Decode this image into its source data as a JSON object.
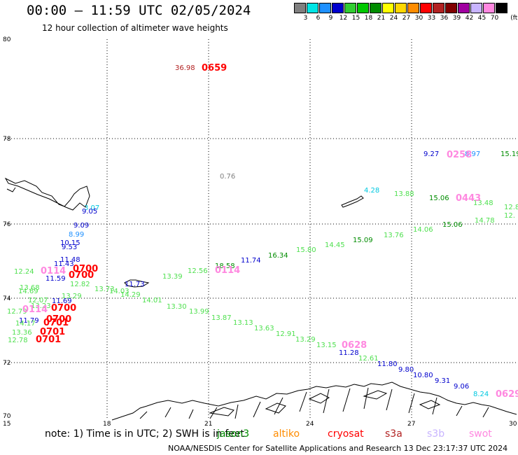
{
  "header": {
    "title": "00:00 – 11:59 UTC 02/05/2024",
    "subtitle": "12 hour collection of altimeter wave heights"
  },
  "legend": {
    "unit": "(ft)",
    "items": [
      {
        "label": "3",
        "color": "#808080"
      },
      {
        "label": "6",
        "color": "#00e5e5"
      },
      {
        "label": "9",
        "color": "#1e90ff"
      },
      {
        "label": "12",
        "color": "#0000cd"
      },
      {
        "label": "15",
        "color": "#32cd32"
      },
      {
        "label": "18",
        "color": "#00c800"
      },
      {
        "label": "21",
        "color": "#008c00"
      },
      {
        "label": "24",
        "color": "#ffff00"
      },
      {
        "label": "27",
        "color": "#ffd700"
      },
      {
        "label": "30",
        "color": "#ff8c00"
      },
      {
        "label": "33",
        "color": "#ff0000"
      },
      {
        "label": "36",
        "color": "#b22222"
      },
      {
        "label": "39",
        "color": "#800000"
      },
      {
        "label": "42",
        "color": "#a000a0"
      },
      {
        "label": "45",
        "color": "#c8b4ff"
      },
      {
        "label": "70",
        "color": "#ff88e0"
      },
      {
        "label": "",
        "color": "#000000"
      }
    ]
  },
  "map": {
    "lat_labels": [
      "80",
      "78",
      "76",
      "74",
      "72",
      "70"
    ],
    "lon_labels": [
      "15",
      "18",
      "21",
      "24",
      "27",
      "30"
    ],
    "grid": true,
    "wave_heights": [
      {
        "text": "36.98",
        "color": "#b22222"
      },
      {
        "text": "0.76",
        "color": "#808080"
      },
      {
        "text": "9.27",
        "color": "#0000cd"
      },
      {
        "text": "8.97",
        "color": "#1e90ff"
      },
      {
        "text": "15.19",
        "color": "#008c00"
      },
      {
        "text": "4.28",
        "color": "#00c8e0"
      },
      {
        "text": "13.88",
        "color": "#50e050"
      },
      {
        "text": "15.06",
        "color": "#008c00"
      },
      {
        "text": "13.48",
        "color": "#50e050"
      },
      {
        "text": "15.06",
        "color": "#008c00"
      },
      {
        "text": "14.78",
        "color": "#50e050"
      },
      {
        "text": "14.06",
        "color": "#50e050"
      },
      {
        "text": "13.76",
        "color": "#50e050"
      },
      {
        "text": "15.09",
        "color": "#008c00"
      },
      {
        "text": "14.45",
        "color": "#50e050"
      },
      {
        "text": "15.80",
        "color": "#50e050"
      },
      {
        "text": "16.34",
        "color": "#008c00"
      },
      {
        "text": "11.74",
        "color": "#0000cd"
      },
      {
        "text": "18.58",
        "color": "#008c00"
      },
      {
        "text": "12.56",
        "color": "#50e050"
      },
      {
        "text": "13.39",
        "color": "#50e050"
      },
      {
        "text": "3.07",
        "color": "#00c8e0"
      },
      {
        "text": "9.05",
        "color": "#0000cd"
      },
      {
        "text": "9.09",
        "color": "#0000cd"
      },
      {
        "text": "8.99",
        "color": "#1e90ff"
      },
      {
        "text": "10.15",
        "color": "#0000cd"
      },
      {
        "text": "9.53",
        "color": "#0000cd"
      },
      {
        "text": "11.48",
        "color": "#0000cd"
      },
      {
        "text": "11.43",
        "color": "#0000cd"
      },
      {
        "text": "12.24",
        "color": "#50e050"
      },
      {
        "text": "11.59",
        "color": "#0000cd"
      },
      {
        "text": "12.82",
        "color": "#50e050"
      },
      {
        "text": "13.68",
        "color": "#50e050"
      },
      {
        "text": "14.69",
        "color": "#50e050"
      },
      {
        "text": "13.29",
        "color": "#50e050"
      },
      {
        "text": "13.73",
        "color": "#50e050"
      },
      {
        "text": "14.03",
        "color": "#50e050"
      },
      {
        "text": "11.73",
        "color": "#0000cd"
      },
      {
        "text": "14.29",
        "color": "#50e050"
      },
      {
        "text": "14.01",
        "color": "#50e050"
      },
      {
        "text": "13.30",
        "color": "#50e050"
      },
      {
        "text": "13.99",
        "color": "#50e050"
      },
      {
        "text": "13.87",
        "color": "#50e050"
      },
      {
        "text": "13.13",
        "color": "#50e050"
      },
      {
        "text": "13.63",
        "color": "#50e050"
      },
      {
        "text": "12.91",
        "color": "#50e050"
      },
      {
        "text": "13.29",
        "color": "#50e050"
      },
      {
        "text": "13.15",
        "color": "#50e050"
      },
      {
        "text": "11.28",
        "color": "#0000cd"
      },
      {
        "text": "12.61",
        "color": "#50e050"
      },
      {
        "text": "11.80",
        "color": "#0000cd"
      },
      {
        "text": "9.80",
        "color": "#0000cd"
      },
      {
        "text": "10.80",
        "color": "#0000cd"
      },
      {
        "text": "9.31",
        "color": "#0000cd"
      },
      {
        "text": "9.06",
        "color": "#0000cd"
      },
      {
        "text": "8.24",
        "color": "#00c8e0"
      },
      {
        "text": "12.07",
        "color": "#50e050"
      },
      {
        "text": "11.69",
        "color": "#0000cd"
      },
      {
        "text": "12.79",
        "color": "#50e050"
      },
      {
        "text": "13.23",
        "color": "#50e050"
      },
      {
        "text": "11.79",
        "color": "#0000cd"
      },
      {
        "text": "14.17",
        "color": "#50e050"
      },
      {
        "text": "13.36",
        "color": "#50e050"
      },
      {
        "text": "12.78",
        "color": "#50e050"
      },
      {
        "text": "12.8",
        "color": "#50e050"
      },
      {
        "text": "12.",
        "color": "#50e050"
      }
    ],
    "pass_times": [
      {
        "text": "0659",
        "color": "#ff0000"
      },
      {
        "text": "0258",
        "color": "#ff88e0"
      },
      {
        "text": "0443",
        "color": "#ff88e0"
      },
      {
        "text": "0114",
        "color": "#ff88e0"
      },
      {
        "text": "0700",
        "color": "#ff0000"
      },
      {
        "text": "0700",
        "color": "#ff0000"
      },
      {
        "text": "0700",
        "color": "#ff0000"
      },
      {
        "text": "0700",
        "color": "#ff0000"
      },
      {
        "text": "0701",
        "color": "#ff0000"
      },
      {
        "text": "0701",
        "color": "#ff0000"
      },
      {
        "text": "0701",
        "color": "#ff0000"
      },
      {
        "text": "0628",
        "color": "#ff88e0"
      },
      {
        "text": "0629",
        "color": "#ff88e0"
      },
      {
        "text": "0114",
        "color": "#ff88e0"
      },
      {
        "text": "0114",
        "color": "#ff88e0"
      }
    ]
  },
  "footer": {
    "note": "note:  1) Time is in UTC;  2) SWH is in feet",
    "missions": [
      {
        "name": "jason3",
        "color": "#008c00"
      },
      {
        "name": "altiko",
        "color": "#ff8c00"
      },
      {
        "name": "cryosat",
        "color": "#ff0000"
      },
      {
        "name": "s3a",
        "color": "#b22222"
      },
      {
        "name": "s3b",
        "color": "#c8b4ff"
      },
      {
        "name": "swot",
        "color": "#ff88e0"
      }
    ],
    "credit": "NOAA/NESDIS Center for Satellite Applications and Research     13 Dec 23:17:37 UTC 2024"
  }
}
